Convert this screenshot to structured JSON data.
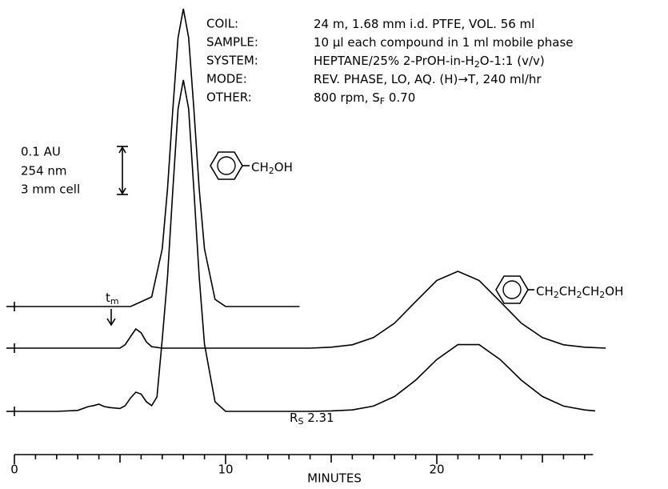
{
  "chart_data": {
    "type": "line",
    "x_label": "MINUTES",
    "xlim": [
      0,
      27.4
    ],
    "xticks": [
      0,
      10,
      20
    ],
    "xminorticks": [
      1,
      2,
      3,
      4,
      5,
      6,
      7,
      8,
      9,
      11,
      12,
      13,
      14,
      15,
      16,
      17,
      18,
      19,
      21,
      22,
      23,
      24,
      25,
      26,
      27
    ],
    "scale_bar": {
      "value": 0.1,
      "label": "0.1 AU"
    },
    "scale_notes": [
      "254 nm",
      "3 mm cell"
    ],
    "conditions": [
      {
        "label": "COIL:",
        "value": [
          "24 m, 1.68 mm i.d. PTFE, VOL. 56 ml"
        ]
      },
      {
        "label": "SAMPLE:",
        "value": [
          "10 μl each compound in 1 ml mobile phase"
        ]
      },
      {
        "label": "SYSTEM:",
        "value": [
          "HEPTANE/25% 2-PrOH-in-H",
          "2",
          "O-1:1 (v/v)"
        ]
      },
      {
        "label": "MODE:",
        "value": [
          "REV. PHASE, LO, AQ. (H)→T, 240 ml/hr"
        ]
      },
      {
        "label": "OTHER:",
        "value": [
          "800 rpm, S",
          "F",
          " 0.70"
        ]
      }
    ],
    "annotations": {
      "tm": [
        "t",
        "m"
      ],
      "rs": [
        "R",
        "S",
        " 2.31"
      ],
      "compound1": [
        "CH",
        "2",
        "OH"
      ],
      "compound2": [
        "CH",
        "2",
        "CH",
        "2",
        "CH",
        "2",
        "OH"
      ]
    },
    "series": [
      {
        "color": "#000000",
        "x": [
          0,
          1,
          2,
          3,
          4,
          5,
          5.5,
          6,
          6.5,
          7,
          7.25,
          7.5,
          7.75,
          8,
          8.25,
          8.5,
          8.75,
          9,
          9.5,
          10,
          11,
          12,
          13.5
        ],
        "values": [
          0,
          0,
          0,
          0,
          0,
          0,
          0,
          0.01,
          0.02,
          0.12,
          0.245,
          0.41,
          0.56,
          0.62,
          0.56,
          0.41,
          0.245,
          0.12,
          0.015,
          0,
          0,
          0,
          0
        ]
      },
      {
        "color": "#000000",
        "x": [
          0,
          1,
          2,
          3,
          4,
          5,
          5.25,
          5.5,
          5.75,
          6,
          6.25,
          6.5,
          7,
          8,
          10,
          12,
          14,
          15,
          16,
          17,
          18,
          19,
          20,
          21,
          22,
          23,
          24,
          25,
          26,
          27,
          28
        ],
        "values": [
          0,
          0,
          0,
          0,
          0,
          0,
          0.0075,
          0.024,
          0.04,
          0.032,
          0.013,
          0.003,
          0,
          0,
          0,
          0,
          0,
          0.002,
          0.007,
          0.022,
          0.052,
          0.097,
          0.141,
          0.16,
          0.141,
          0.097,
          0.052,
          0.022,
          0.007,
          0.002,
          0
        ]
      },
      {
        "color": "#000000",
        "x": [
          0,
          1,
          2,
          3,
          3.5,
          3.75,
          4,
          4.25,
          4.5,
          5,
          5.25,
          5.5,
          5.75,
          6,
          6.25,
          6.5,
          6.75,
          7,
          7.25,
          7.5,
          7.75,
          8,
          8.25,
          8.5,
          8.75,
          9,
          9.5,
          10,
          12,
          14,
          15,
          16,
          17,
          18,
          19,
          20,
          21,
          22,
          23,
          24,
          25,
          26,
          27,
          27.5
        ],
        "values": [
          0,
          0,
          0,
          0.002,
          0.01,
          0.012,
          0.015,
          0.01,
          0.008,
          0.006,
          0.012,
          0.028,
          0.04,
          0.036,
          0.02,
          0.012,
          0.03,
          0.15,
          0.28,
          0.46,
          0.63,
          0.69,
          0.63,
          0.46,
          0.28,
          0.14,
          0.02,
          0,
          0,
          0,
          0.001,
          0.003,
          0.011,
          0.031,
          0.065,
          0.108,
          0.139,
          0.139,
          0.108,
          0.065,
          0.031,
          0.011,
          0.003,
          0.001
        ]
      }
    ]
  }
}
